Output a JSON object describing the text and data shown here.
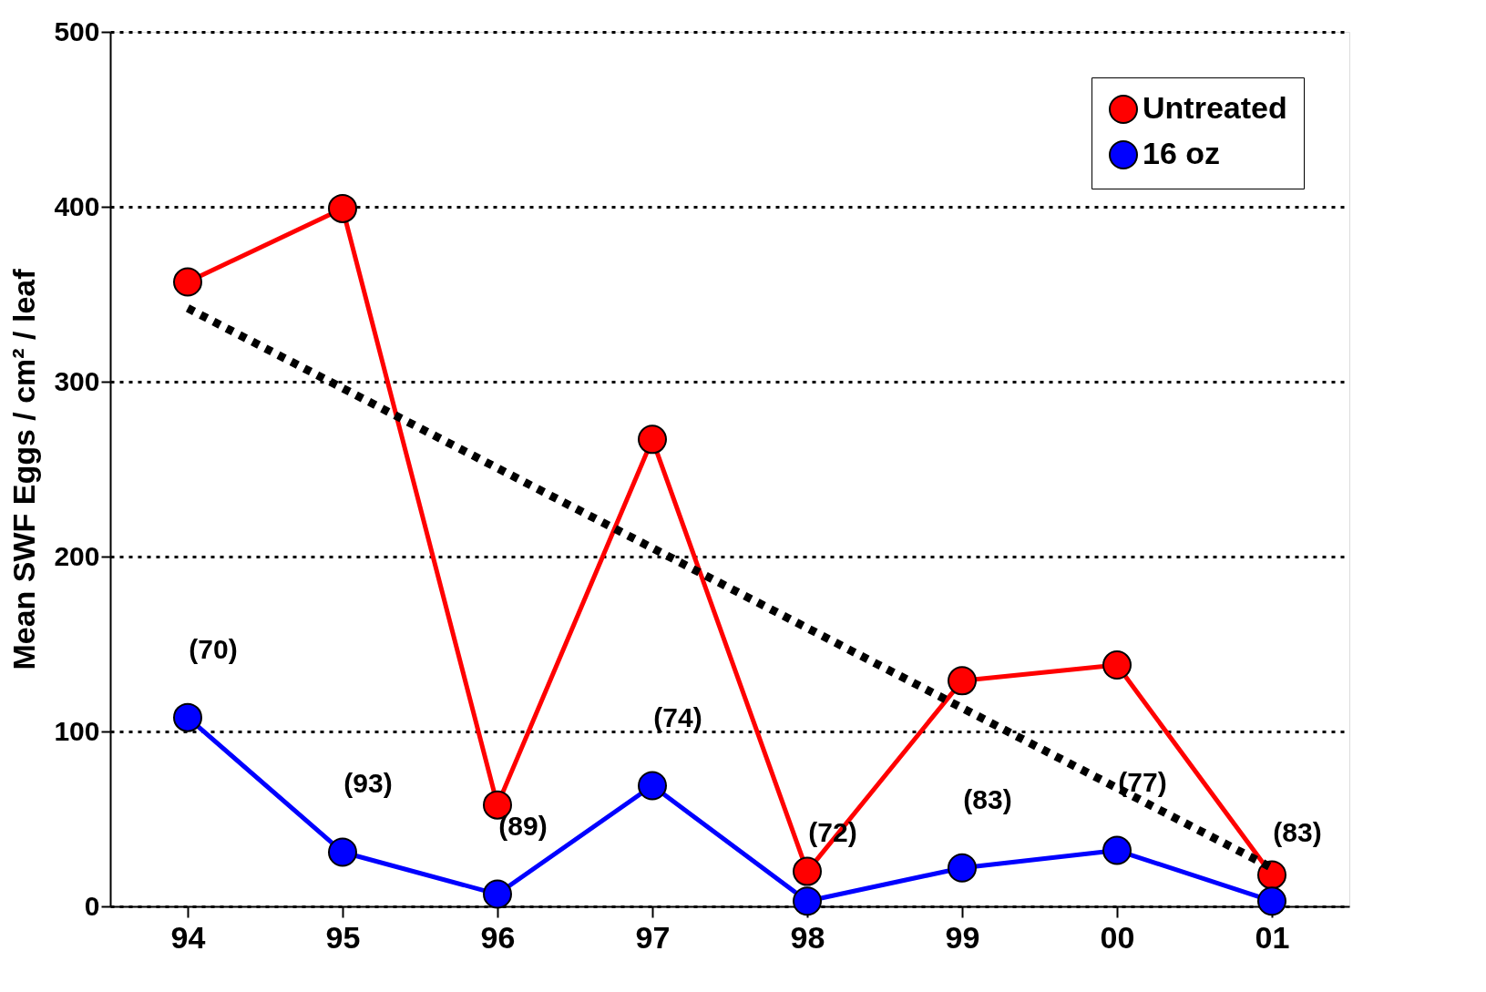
{
  "chart_data": {
    "type": "line",
    "ylabel": "Mean SWF Eggs / cm² / leaf",
    "categories": [
      "94",
      "95",
      "96",
      "97",
      "98",
      "99",
      "00",
      "01"
    ],
    "series": [
      {
        "name": "Untreated",
        "color": "#ff0000",
        "values": [
          357,
          399,
          58,
          267,
          20,
          129,
          138,
          18
        ]
      },
      {
        "name": "16 oz",
        "color": "#0000ff",
        "values": [
          108,
          31,
          7,
          69,
          3,
          22,
          32,
          3
        ]
      },
      {
        "type": "line",
        "x": [
          "94",
          "01"
        ],
        "values": [
          342,
          22
        ],
        "color": "#000000",
        "line_style": "dotted",
        "marker": "none"
      }
    ],
    "ylim": [
      0,
      500
    ],
    "yticks": [
      0,
      100,
      200,
      300,
      400,
      500
    ],
    "grid": "y",
    "legend": "top right",
    "marker": "circle",
    "line_style": "solid",
    "annotations": [
      {
        "text": "(70)",
        "x": "94",
        "y": 108
      },
      {
        "text": "(93)",
        "x": "95",
        "y": 31
      },
      {
        "text": "(89)",
        "x": "96",
        "y": 7
      },
      {
        "text": "(74)",
        "x": "97",
        "y": 69
      },
      {
        "text": "(72)",
        "x": "98",
        "y": 3
      },
      {
        "text": "(83)",
        "x": "99",
        "y": 22
      },
      {
        "text": "(77)",
        "x": "00",
        "y": 32
      },
      {
        "text": "(83)",
        "x": "01",
        "y": 3
      }
    ]
  }
}
